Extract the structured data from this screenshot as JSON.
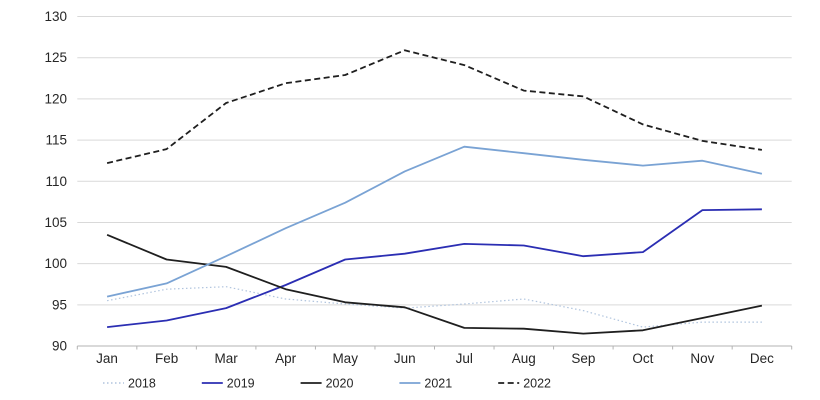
{
  "chart_data": {
    "type": "line",
    "title": "",
    "xlabel": "",
    "ylabel": "",
    "categories": [
      "Jan",
      "Feb",
      "Mar",
      "Apr",
      "May",
      "Jun",
      "Jul",
      "Aug",
      "Sep",
      "Oct",
      "Nov",
      "Dec"
    ],
    "series": [
      {
        "name": "2018",
        "line_style": "dotted",
        "color": "#b0c4de",
        "stroke_width": 1.2,
        "dash": "1.5 2.5",
        "values": [
          95.5,
          96.9,
          97.2,
          95.7,
          95.1,
          94.6,
          95.1,
          95.7,
          94.3,
          92.3,
          92.9,
          92.9
        ]
      },
      {
        "name": "2019",
        "line_style": "solid",
        "color": "#2b2eb3",
        "stroke_width": 1.8,
        "dash": "",
        "values": [
          92.3,
          93.1,
          94.6,
          97.4,
          100.5,
          101.2,
          102.4,
          102.2,
          100.9,
          101.4,
          106.5,
          106.6
        ]
      },
      {
        "name": "2020",
        "line_style": "solid",
        "color": "#1f1f1f",
        "stroke_width": 1.8,
        "dash": "",
        "values": [
          103.5,
          100.5,
          99.6,
          96.9,
          95.3,
          94.7,
          92.2,
          92.1,
          91.5,
          91.9,
          93.4,
          94.9
        ]
      },
      {
        "name": "2021",
        "line_style": "solid",
        "color": "#7aa3d4",
        "stroke_width": 1.8,
        "dash": "",
        "values": [
          96.0,
          97.6,
          100.9,
          104.3,
          107.4,
          111.2,
          114.2,
          113.4,
          112.6,
          111.9,
          112.5,
          110.9
        ]
      },
      {
        "name": "2022",
        "line_style": "dashed",
        "color": "#1f1f1f",
        "stroke_width": 1.8,
        "dash": "6 3.5",
        "values": [
          112.2,
          113.9,
          119.5,
          121.9,
          122.9,
          125.9,
          124.1,
          121.0,
          120.3,
          116.9,
          114.9,
          113.8
        ]
      }
    ],
    "ylim": [
      90,
      130
    ],
    "yticks": [
      90,
      95,
      100,
      105,
      110,
      115,
      120,
      125,
      130
    ],
    "grid": "horizontal",
    "legend_position": "bottom-left",
    "legend_labels": [
      "2018",
      "2019",
      "2020",
      "2021",
      "2022"
    ],
    "style": {
      "gridline_color": "#d9d9d9",
      "axis_color": "#b3b3b3",
      "tick_color": "#b3b3b3",
      "label_color": "#262626",
      "tick_font_size": 13.5,
      "legend_font_size": 12.5,
      "background": "#ffffff"
    }
  }
}
